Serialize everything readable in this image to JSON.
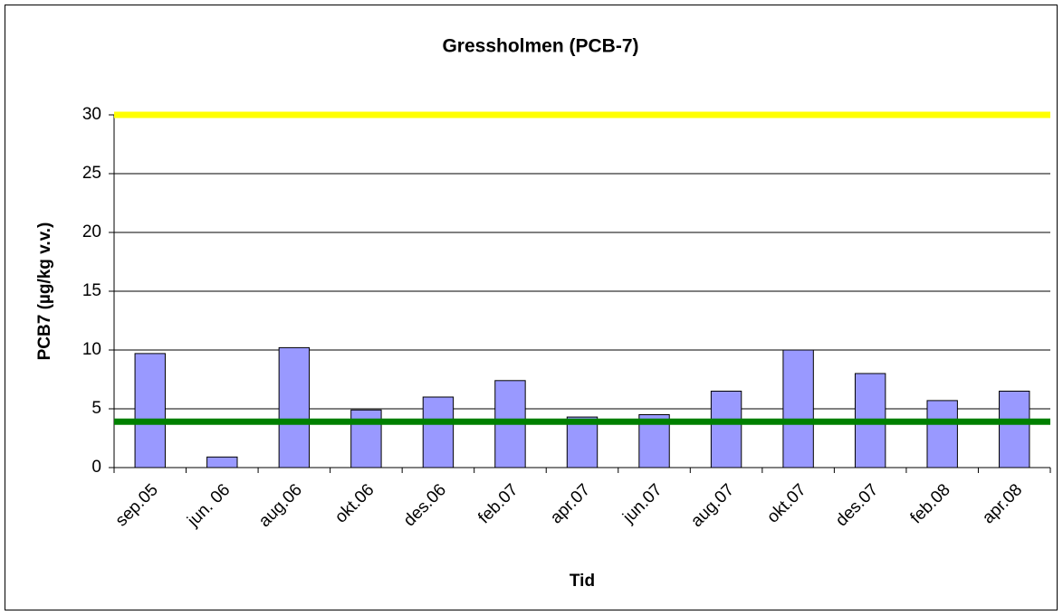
{
  "chart_data": {
    "type": "bar",
    "title": "Gressholmen (PCB-7)",
    "x_label": "Tid",
    "y_label": "PCB7 (µg/kg v.v.)",
    "categories": [
      "sep.05",
      "jun. 06",
      "aug.06",
      "okt.06",
      "des.06",
      "feb.07",
      "apr.07",
      "jun.07",
      "aug.07",
      "okt.07",
      "des.07",
      "feb.08",
      "apr.08"
    ],
    "values": [
      9.7,
      0.9,
      10.2,
      4.9,
      6.0,
      7.4,
      4.3,
      4.5,
      6.5,
      10.0,
      8.0,
      5.7,
      6.5
    ],
    "color": "#9999ff",
    "ylim": [
      0,
      30
    ],
    "yticks": [
      0,
      5,
      10,
      15,
      20,
      25,
      30
    ],
    "grid": true,
    "reference_lines": [
      {
        "value": 30,
        "color": "#ffff00"
      },
      {
        "value": 3.9,
        "color": "#008000"
      }
    ]
  }
}
